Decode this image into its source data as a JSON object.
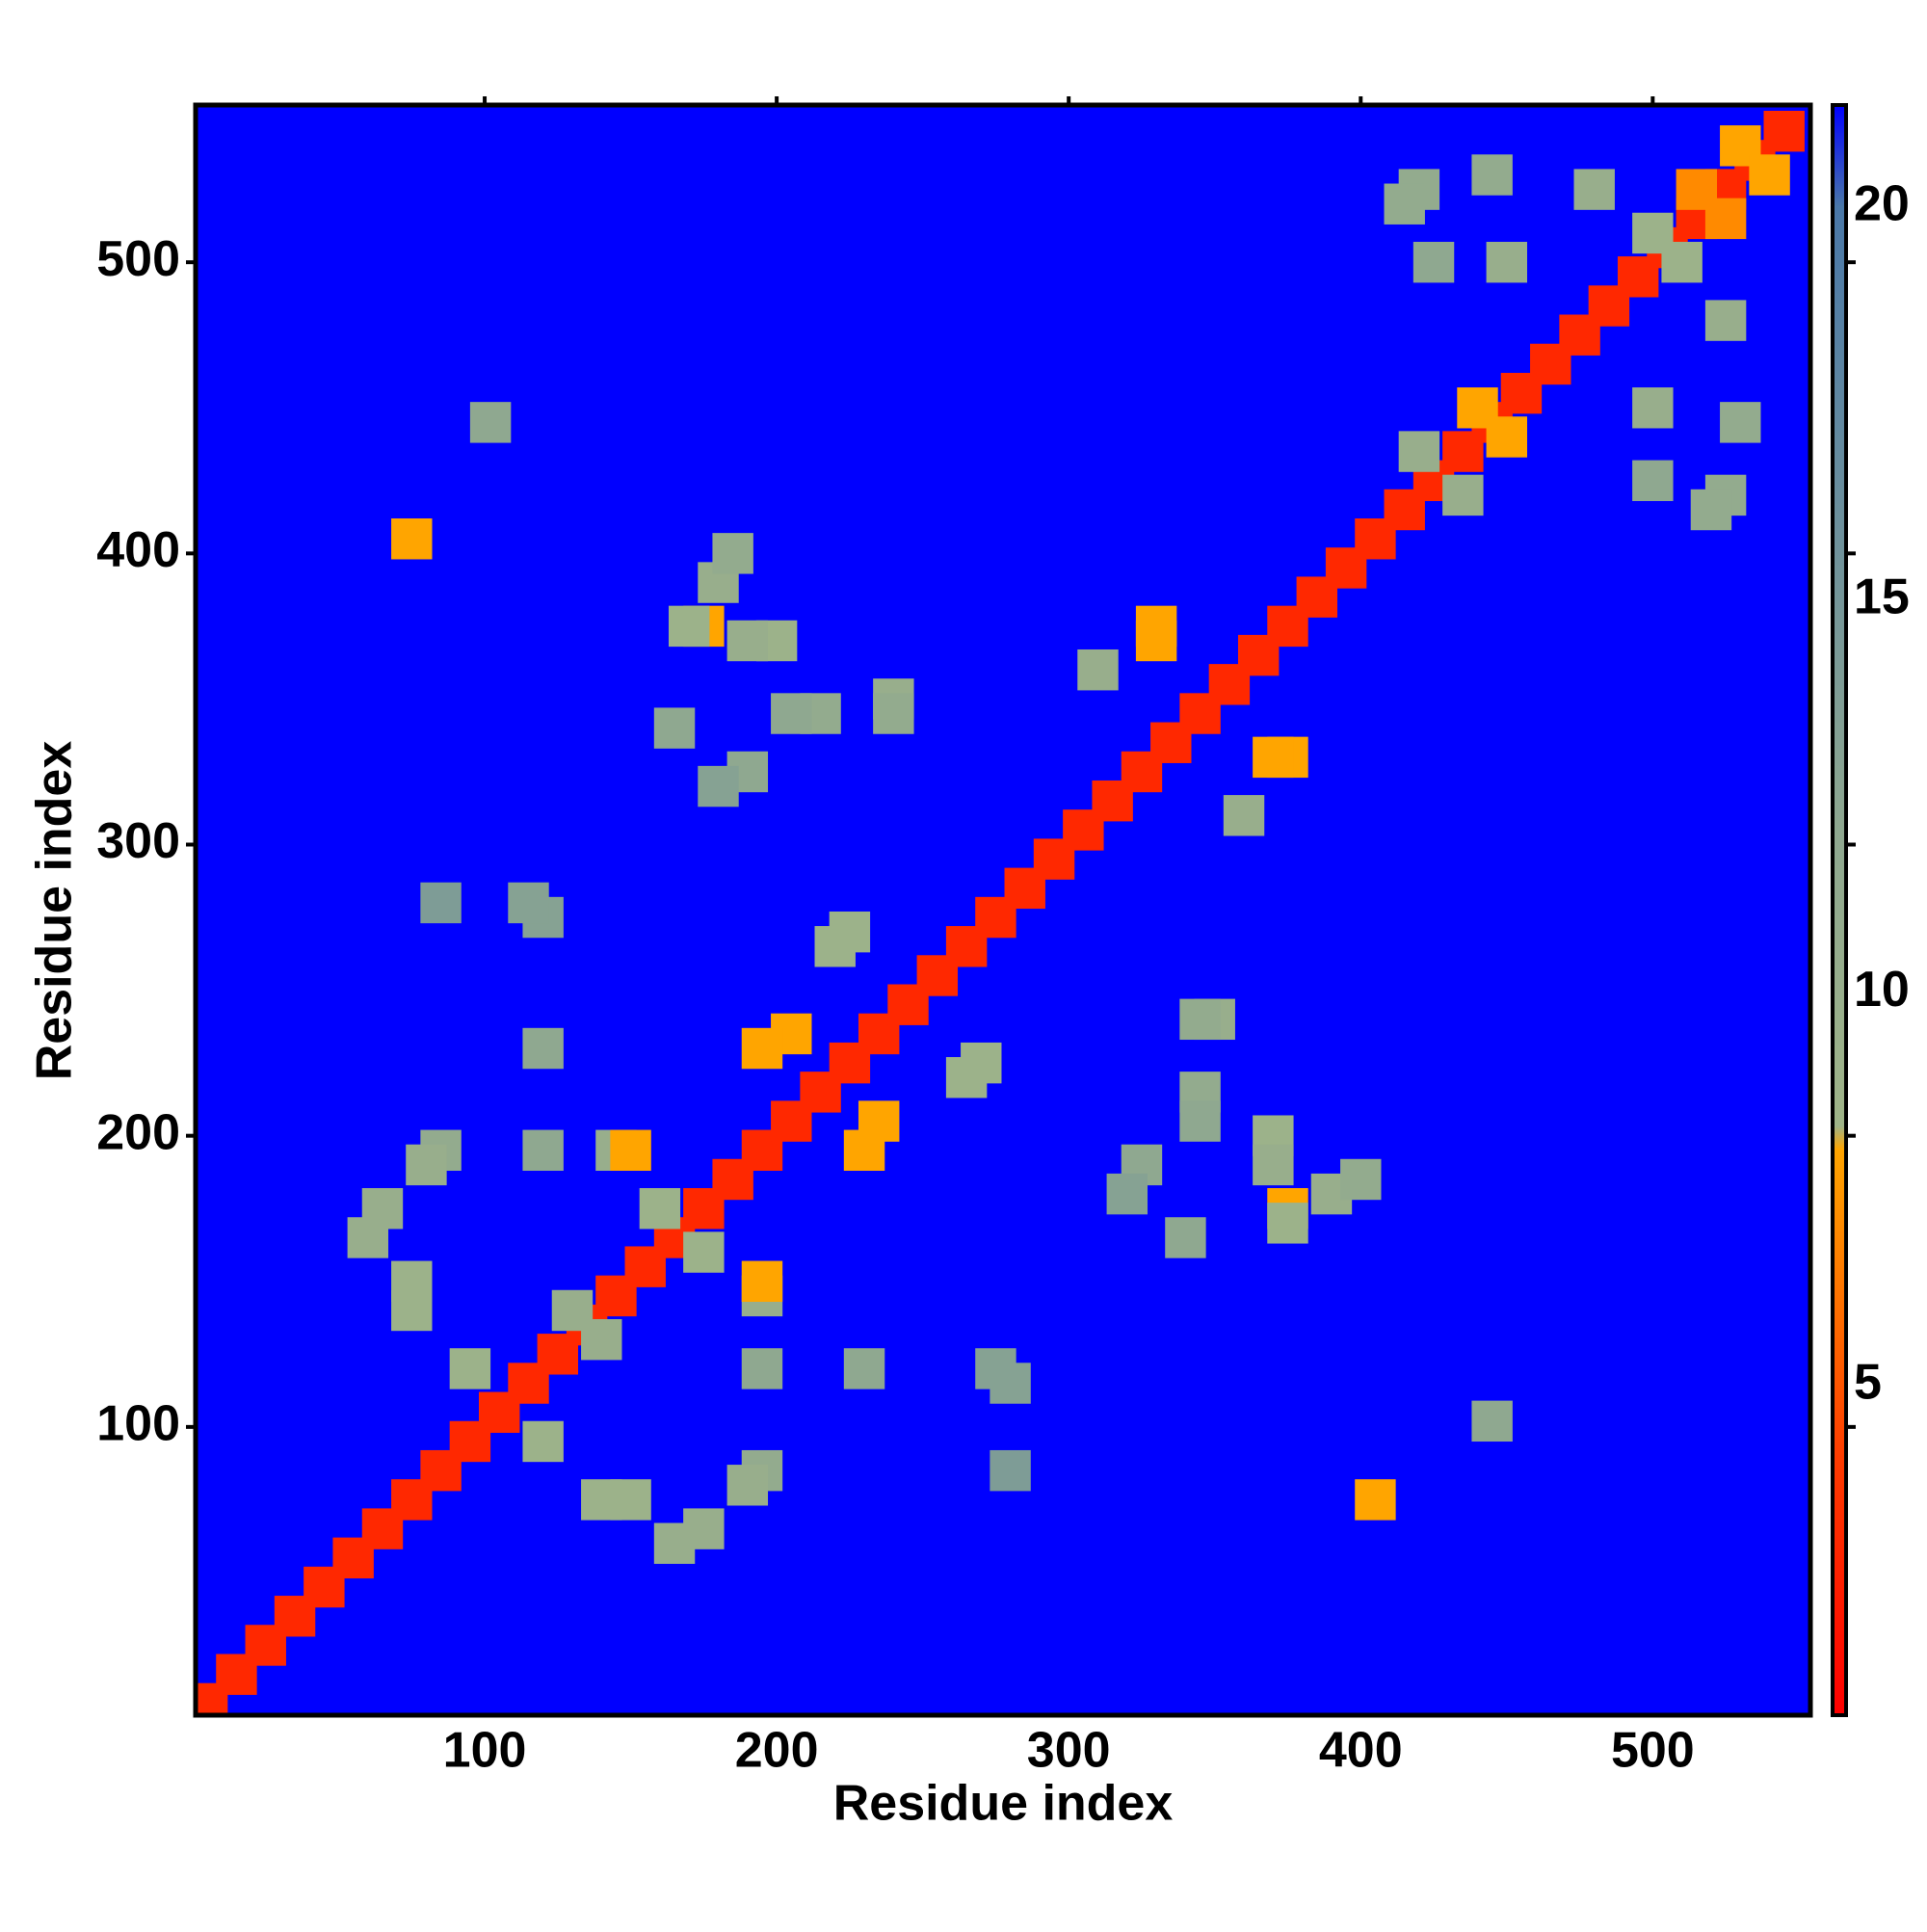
{
  "chart_data": {
    "type": "heatmap",
    "xlabel": "Residue index",
    "ylabel": "Residue index",
    "xlim": [
      1,
      554
    ],
    "ylim": [
      1,
      554
    ],
    "xticks": [
      100,
      200,
      300,
      400,
      500
    ],
    "yticks": [
      100,
      200,
      300,
      400,
      500
    ],
    "clim": [
      0.8,
      21.3
    ],
    "cticks": [
      5,
      10,
      15,
      20
    ],
    "colorscale": [
      [
        0.8,
        "#ff0000"
      ],
      [
        4,
        "#ff3a00"
      ],
      [
        8,
        "#ffa500"
      ],
      [
        8.3,
        "#9fb488"
      ],
      [
        12,
        "#8fa890"
      ],
      [
        20,
        "#4a78a8"
      ],
      [
        21.3,
        "#0000ff"
      ]
    ],
    "symmetric": true,
    "x": [
      5,
      15,
      25,
      35,
      45,
      55,
      65,
      75,
      85,
      95,
      105,
      115,
      125,
      135,
      145,
      155,
      165,
      175,
      185,
      195,
      205,
      215,
      225,
      235,
      245,
      255,
      265,
      275,
      285,
      295,
      305,
      315,
      325,
      335,
      345,
      355,
      365,
      375,
      385,
      395,
      405,
      415,
      425,
      435,
      445,
      455,
      465,
      475,
      485,
      495,
      505,
      515,
      525,
      535,
      545,
      60,
      75,
      95,
      85,
      180,
      175,
      200,
      215,
      165,
      190,
      240,
      330,
      310,
      330,
      220,
      205,
      195,
      225,
      145,
      160,
      150,
      120,
      120,
      120,
      85,
      345,
      345,
      370,
      375,
      400,
      320,
      130,
      75,
      65,
      80,
      115,
      440,
      435,
      450,
      420,
      425,
      415,
      445,
      515,
      500,
      530,
      480,
      75,
      102
    ],
    "y": [
      5,
      15,
      25,
      35,
      45,
      55,
      65,
      75,
      85,
      95,
      105,
      115,
      125,
      135,
      145,
      155,
      165,
      175,
      185,
      195,
      205,
      215,
      225,
      235,
      245,
      255,
      265,
      275,
      285,
      295,
      305,
      315,
      325,
      335,
      345,
      355,
      365,
      375,
      385,
      395,
      405,
      415,
      425,
      435,
      445,
      455,
      465,
      475,
      485,
      495,
      505,
      515,
      525,
      535,
      545,
      165,
      150,
      120,
      195,
      390,
      375,
      370,
      345,
      340,
      325,
      350,
      375,
      360,
      370,
      265,
      235,
      230,
      270,
      195,
      175,
      195,
      230,
      195,
      275,
      280,
      240,
      205,
      190,
      170,
      185,
      180,
      140,
      140,
      175,
      190,
      280,
      450,
      420,
      500,
      525,
      500,
      520,
      530,
      525,
      510,
      540,
      525,
      405,
      445
    ],
    "values": [
      3,
      3,
      3,
      3,
      3,
      3,
      3,
      3,
      3,
      3,
      3,
      3,
      3,
      3,
      3,
      3,
      3,
      3,
      3,
      3,
      3,
      3,
      3,
      3,
      3,
      3,
      3,
      3,
      3,
      3,
      3,
      3,
      3,
      3,
      3,
      3,
      3,
      3,
      3,
      3,
      3,
      3,
      3,
      3,
      3,
      3,
      3,
      3,
      3,
      3,
      3,
      3,
      3,
      3,
      3,
      10,
      9,
      9,
      11,
      10,
      8,
      9,
      11,
      12,
      12,
      10,
      8,
      10,
      8,
      9,
      8,
      8,
      9,
      10,
      9,
      8,
      12,
      12,
      13,
      14,
      11,
      12,
      10,
      9,
      11,
      13,
      10,
      9,
      10,
      10,
      13,
      8,
      10,
      10,
      11,
      12,
      11,
      11,
      7,
      9,
      8,
      10,
      8,
      12
    ]
  }
}
